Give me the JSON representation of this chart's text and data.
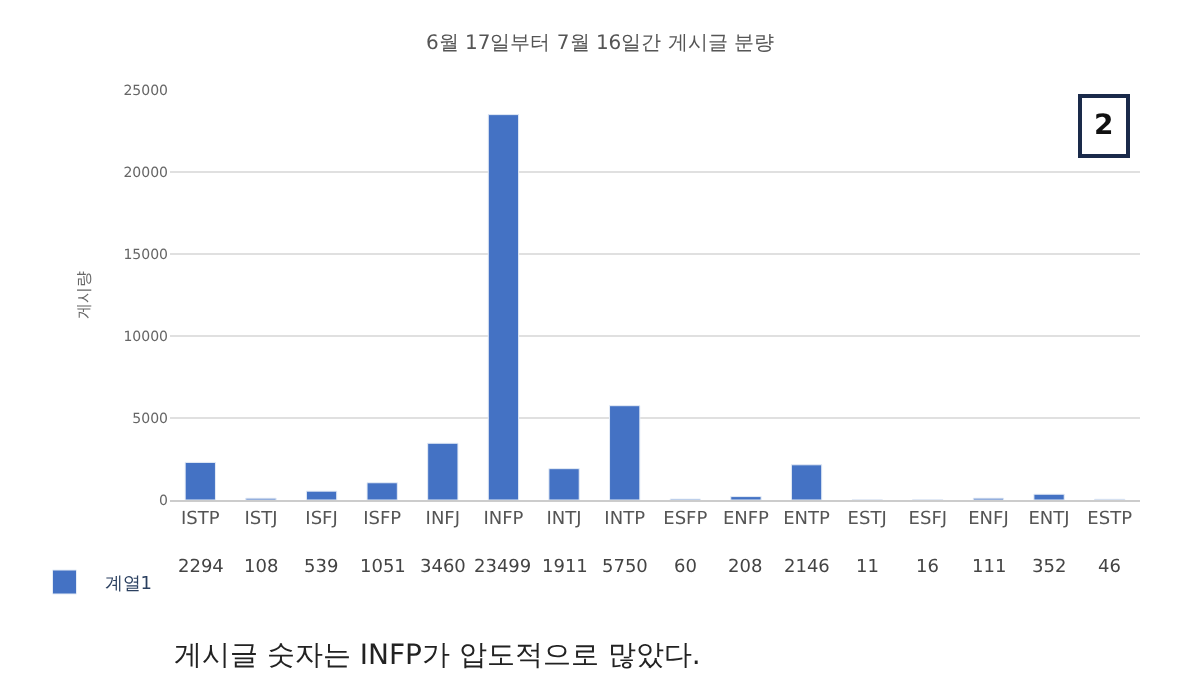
{
  "chart_data": {
    "type": "bar",
    "title": "6월 17일부터 7월 16일간 게시글 분량",
    "ylabel": "게시량",
    "categories": [
      "ISTP",
      "ISTJ",
      "ISFJ",
      "ISFP",
      "INFJ",
      "INFP",
      "INTJ",
      "INTP",
      "ESFP",
      "ENFP",
      "ENTP",
      "ESTJ",
      "ESFJ",
      "ENFJ",
      "ENTJ",
      "ESTP"
    ],
    "series": [
      {
        "name": "계열1",
        "color": "#4472c4",
        "values": [
          2294,
          108,
          539,
          1051,
          3460,
          23499,
          1911,
          5750,
          60,
          208,
          2146,
          11,
          16,
          111,
          352,
          46
        ]
      }
    ],
    "ylim": [
      0,
      25000
    ],
    "yticks": [
      0,
      5000,
      10000,
      15000,
      20000,
      25000
    ],
    "grid": "y",
    "legend": "bottom left",
    "data_labels": true,
    "annotations": [
      "2",
      "게시글 숫자는 INFP가 압도적으로 많았다."
    ]
  }
}
